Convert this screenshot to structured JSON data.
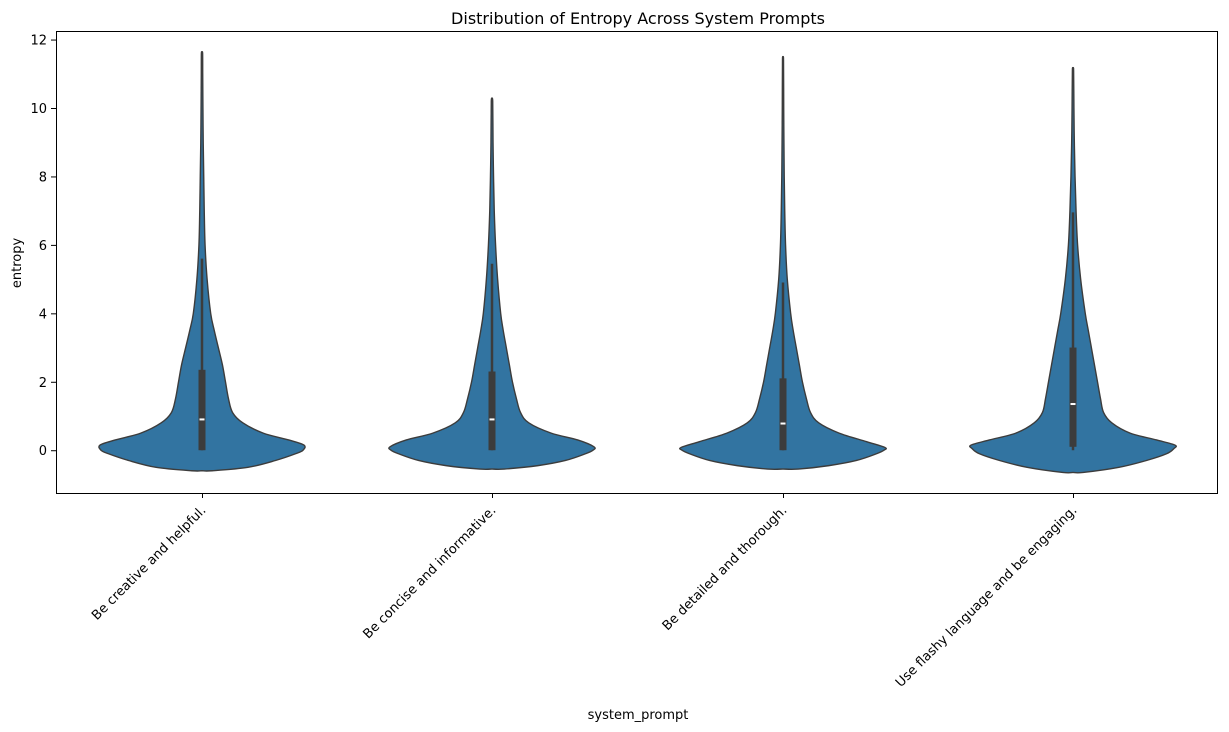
{
  "chart_data": {
    "type": "violin",
    "title": "Distribution of Entropy Across System Prompts",
    "xlabel": "system_prompt",
    "ylabel": "entropy",
    "ylim": [
      -1.25,
      12.25
    ],
    "yticks": [
      0,
      2,
      4,
      6,
      8,
      10,
      12
    ],
    "grid": false,
    "colors": {
      "violin_fill": "#3274a1",
      "violin_edge": "#3c3c3c",
      "box": "#3c3c3c",
      "median": "#ffffff"
    },
    "categories": [
      "Be creative and helpful.",
      "Be concise and informative.",
      "Be detailed and thorough.",
      "Use flashy language and be engaging."
    ],
    "violins": [
      {
        "category": "Be creative and helpful.",
        "min": -0.6,
        "max": 11.6,
        "q1": 0.0,
        "median": 0.9,
        "q3": 2.35,
        "whisker_low": 0.0,
        "whisker_high": 5.6,
        "density": [
          [
            -0.6,
            0.1
          ],
          [
            -0.5,
            0.45
          ],
          [
            -0.3,
            0.72
          ],
          [
            -0.1,
            0.92
          ],
          [
            0.0,
            0.99
          ],
          [
            0.15,
            1.0
          ],
          [
            0.3,
            0.85
          ],
          [
            0.5,
            0.6
          ],
          [
            0.8,
            0.4
          ],
          [
            1.1,
            0.3
          ],
          [
            1.5,
            0.26
          ],
          [
            2.0,
            0.23
          ],
          [
            2.5,
            0.2
          ],
          [
            3.0,
            0.16
          ],
          [
            3.5,
            0.12
          ],
          [
            4.0,
            0.085
          ],
          [
            5.0,
            0.05
          ],
          [
            6.0,
            0.03
          ],
          [
            7.0,
            0.022
          ],
          [
            8.0,
            0.017
          ],
          [
            9.0,
            0.012
          ],
          [
            10.0,
            0.009
          ],
          [
            11.0,
            0.007
          ],
          [
            11.6,
            0.006
          ]
        ]
      },
      {
        "category": "Be concise and informative.",
        "min": -0.55,
        "max": 10.2,
        "q1": 0.0,
        "median": 0.9,
        "q3": 2.3,
        "whisker_low": 0.0,
        "whisker_high": 5.45,
        "density": [
          [
            -0.55,
            0.12
          ],
          [
            -0.45,
            0.45
          ],
          [
            -0.3,
            0.72
          ],
          [
            -0.1,
            0.92
          ],
          [
            0.0,
            0.99
          ],
          [
            0.1,
            1.0
          ],
          [
            0.3,
            0.84
          ],
          [
            0.5,
            0.58
          ],
          [
            0.8,
            0.36
          ],
          [
            1.1,
            0.28
          ],
          [
            1.5,
            0.24
          ],
          [
            2.0,
            0.2
          ],
          [
            2.5,
            0.17
          ],
          [
            3.0,
            0.14
          ],
          [
            3.5,
            0.11
          ],
          [
            4.0,
            0.085
          ],
          [
            5.0,
            0.055
          ],
          [
            6.0,
            0.035
          ],
          [
            7.0,
            0.022
          ],
          [
            8.0,
            0.015
          ],
          [
            9.0,
            0.01
          ],
          [
            10.2,
            0.007
          ]
        ]
      },
      {
        "category": "Be detailed and thorough.",
        "min": -0.55,
        "max": 11.4,
        "q1": 0.0,
        "median": 0.78,
        "q3": 2.1,
        "whisker_low": 0.0,
        "whisker_high": 4.9,
        "density": [
          [
            -0.55,
            0.15
          ],
          [
            -0.45,
            0.45
          ],
          [
            -0.3,
            0.72
          ],
          [
            -0.1,
            0.92
          ],
          [
            0.0,
            0.99
          ],
          [
            0.08,
            1.0
          ],
          [
            0.25,
            0.82
          ],
          [
            0.5,
            0.55
          ],
          [
            0.8,
            0.35
          ],
          [
            1.1,
            0.27
          ],
          [
            1.5,
            0.23
          ],
          [
            2.0,
            0.19
          ],
          [
            2.5,
            0.16
          ],
          [
            3.0,
            0.13
          ],
          [
            3.5,
            0.1
          ],
          [
            4.0,
            0.075
          ],
          [
            5.0,
            0.042
          ],
          [
            6.0,
            0.025
          ],
          [
            7.0,
            0.017
          ],
          [
            8.0,
            0.012
          ],
          [
            9.0,
            0.009
          ],
          [
            10.0,
            0.007
          ],
          [
            11.4,
            0.005
          ]
        ]
      },
      {
        "category": "Use flashy language and be engaging.",
        "min": -0.65,
        "max": 11.1,
        "q1": 0.1,
        "median": 1.35,
        "q3": 3.0,
        "whisker_low": 0.0,
        "whisker_high": 6.95,
        "density": [
          [
            -0.65,
            0.1
          ],
          [
            -0.5,
            0.45
          ],
          [
            -0.3,
            0.72
          ],
          [
            -0.1,
            0.92
          ],
          [
            0.05,
            0.99
          ],
          [
            0.15,
            1.0
          ],
          [
            0.3,
            0.82
          ],
          [
            0.5,
            0.56
          ],
          [
            0.8,
            0.38
          ],
          [
            1.1,
            0.3
          ],
          [
            1.5,
            0.27
          ],
          [
            2.0,
            0.24
          ],
          [
            2.5,
            0.21
          ],
          [
            3.0,
            0.18
          ],
          [
            3.5,
            0.15
          ],
          [
            4.0,
            0.12
          ],
          [
            5.0,
            0.075
          ],
          [
            6.0,
            0.045
          ],
          [
            7.0,
            0.03
          ],
          [
            8.0,
            0.02
          ],
          [
            9.0,
            0.013
          ],
          [
            10.0,
            0.009
          ],
          [
            11.1,
            0.006
          ]
        ]
      }
    ]
  }
}
